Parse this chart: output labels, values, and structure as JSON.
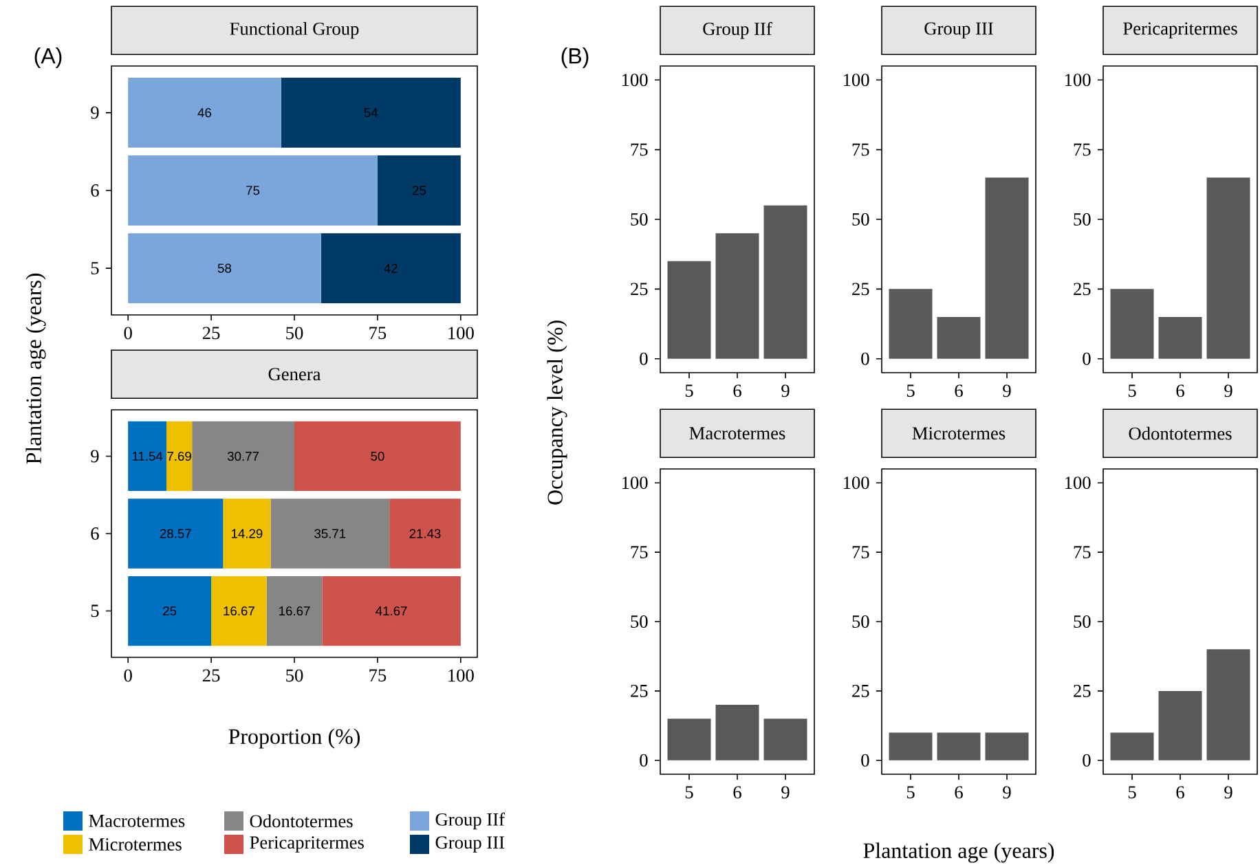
{
  "chart_data": [
    {
      "type": "bar",
      "orientation": "horizontal",
      "stacked": true,
      "title": "Functional Group",
      "ylabel": "Plantation age (years)",
      "annotations": [
        "(A)"
      ],
      "categories": [
        "9",
        "6",
        "5"
      ],
      "data_labels": true,
      "legend": "bottom",
      "xlim": [
        -5,
        105
      ],
      "xticks": [
        0,
        25,
        50,
        75,
        100
      ],
      "series": [
        {
          "name": "Group IIf",
          "color": "#7aa6dc",
          "values": [
            46,
            75,
            58
          ]
        },
        {
          "name": "Group III",
          "color": "#003a66",
          "values": [
            54,
            25,
            42
          ]
        }
      ]
    },
    {
      "type": "bar",
      "orientation": "horizontal",
      "stacked": true,
      "title": "Genera",
      "xlabel": "Proportion (%)",
      "categories": [
        "9",
        "6",
        "5"
      ],
      "data_labels": true,
      "legend": "bottom",
      "xlim": [
        -5,
        105
      ],
      "xticks": [
        0,
        25,
        50,
        75,
        100
      ],
      "series": [
        {
          "name": "Macrotermes",
          "color": "#0070c0",
          "values": [
            11.54,
            28.57,
            25
          ]
        },
        {
          "name": "Microtermes",
          "color": "#efc000",
          "values": [
            7.69,
            14.29,
            16.67
          ]
        },
        {
          "name": "Odontotermes",
          "color": "#868686",
          "values": [
            30.77,
            35.71,
            16.67
          ]
        },
        {
          "name": "Pericapritermes",
          "color": "#cd534c",
          "values": [
            50,
            21.43,
            41.67
          ]
        }
      ]
    },
    {
      "type": "bar",
      "title": "Group IIf",
      "ylabel": "Occupancy level (%)",
      "annotations": [
        "(B)"
      ],
      "categories": [
        "5",
        "6",
        "9"
      ],
      "values": [
        35,
        45,
        55
      ],
      "color": "#595959",
      "ylim": [
        -5,
        105
      ],
      "yticks": [
        0,
        25,
        50,
        75,
        100
      ]
    },
    {
      "type": "bar",
      "title": "Group III",
      "categories": [
        "5",
        "6",
        "9"
      ],
      "values": [
        25,
        15,
        65
      ],
      "color": "#595959",
      "ylim": [
        -5,
        105
      ],
      "yticks": [
        0,
        25,
        50,
        75,
        100
      ]
    },
    {
      "type": "bar",
      "title": "Pericapritermes",
      "categories": [
        "5",
        "6",
        "9"
      ],
      "values": [
        25,
        15,
        65
      ],
      "color": "#595959",
      "ylim": [
        -5,
        105
      ],
      "yticks": [
        0,
        25,
        50,
        75,
        100
      ]
    },
    {
      "type": "bar",
      "title": "Macrotermes",
      "categories": [
        "5",
        "6",
        "9"
      ],
      "values": [
        15,
        20,
        15
      ],
      "color": "#595959",
      "ylim": [
        -5,
        105
      ],
      "yticks": [
        0,
        25,
        50,
        75,
        100
      ]
    },
    {
      "type": "bar",
      "title": "Microtermes",
      "xlabel": "Plantation age (years)",
      "categories": [
        "5",
        "6",
        "9"
      ],
      "values": [
        10,
        10,
        10
      ],
      "color": "#595959",
      "ylim": [
        -5,
        105
      ],
      "yticks": [
        0,
        25,
        50,
        75,
        100
      ]
    },
    {
      "type": "bar",
      "title": "Odontotermes",
      "categories": [
        "5",
        "6",
        "9"
      ],
      "values": [
        10,
        25,
        40
      ],
      "color": "#595959",
      "ylim": [
        -5,
        105
      ],
      "yticks": [
        0,
        25,
        50,
        75,
        100
      ]
    }
  ]
}
